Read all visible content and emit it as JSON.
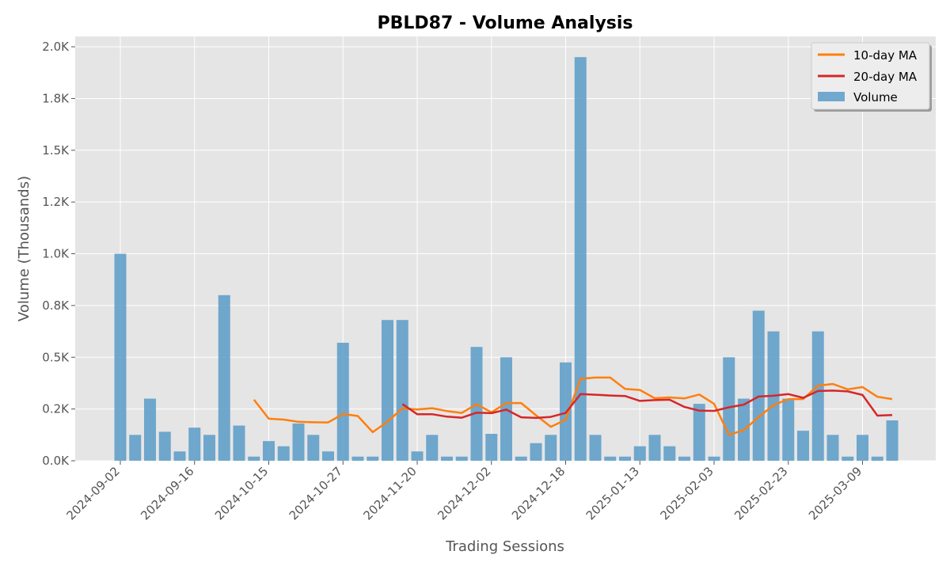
{
  "chart_data": {
    "type": "bar",
    "title": "PBLD87 - Volume Analysis",
    "xlabel": "Trading Sessions",
    "ylabel": "Volume (Thousands)",
    "ylim": [
      0,
      2050
    ],
    "y_ticks": [
      0,
      250,
      500,
      750,
      1000,
      1250,
      1500,
      1750,
      2000
    ],
    "y_tick_labels": [
      "0.0K",
      "0.2K",
      "0.5K",
      "0.8K",
      "1.0K",
      "1.2K",
      "1.5K",
      "1.8K",
      "2.0K"
    ],
    "x_tick_labels": [
      {
        "index": 0,
        "label": "2024-09-02"
      },
      {
        "index": 5,
        "label": "2024-09-16"
      },
      {
        "index": 10,
        "label": "2024-10-15"
      },
      {
        "index": 15,
        "label": "2024-10-27"
      },
      {
        "index": 20,
        "label": "2024-11-20"
      },
      {
        "index": 25,
        "label": "2024-12-02"
      },
      {
        "index": 30,
        "label": "2024-12-18"
      },
      {
        "index": 35,
        "label": "2025-01-13"
      },
      {
        "index": 40,
        "label": "2025-02-03"
      },
      {
        "index": 45,
        "label": "2025-02-23"
      },
      {
        "index": 50,
        "label": "2025-03-09"
      }
    ],
    "grid": true,
    "legend_position": "top-right",
    "series": [
      {
        "name": "Volume",
        "type": "bar",
        "color": "#5b9bc8",
        "values": [
          1000,
          125,
          300,
          140,
          45,
          160,
          125,
          800,
          170,
          20,
          95,
          70,
          180,
          125,
          45,
          570,
          20,
          20,
          680,
          680,
          45,
          125,
          20,
          20,
          550,
          130,
          500,
          20,
          85,
          125,
          475,
          1950,
          125,
          20,
          20,
          70,
          125,
          70,
          20,
          275,
          20,
          500,
          300,
          725,
          625,
          300,
          145,
          625,
          125,
          20,
          125,
          20,
          195
        ]
      },
      {
        "name": "10-day MA",
        "type": "line",
        "color": "#ff7f0e",
        "values": [
          null,
          null,
          null,
          null,
          null,
          null,
          null,
          null,
          null,
          295,
          203,
          199,
          188,
          186,
          185,
          226,
          216,
          138,
          189,
          253,
          248,
          254,
          240,
          231,
          273,
          234,
          279,
          279,
          220,
          164,
          198,
          396,
          402,
          402,
          347,
          342,
          302,
          306,
          301,
          320,
          275,
          125,
          148,
          211,
          269,
          298,
          298,
          363,
          371,
          345,
          356,
          309,
          298
        ]
      },
      {
        "name": "20-day MA",
        "type": "line",
        "color": "#d62728",
        "values": [
          null,
          null,
          null,
          null,
          null,
          null,
          null,
          null,
          null,
          null,
          null,
          null,
          null,
          null,
          null,
          null,
          null,
          null,
          null,
          274,
          225,
          225,
          213,
          208,
          232,
          230,
          247,
          210,
          207,
          212,
          231,
          322,
          319,
          315,
          313,
          289,
          293,
          295,
          260,
          242,
          241,
          258,
          271,
          310,
          314,
          322,
          304,
          337,
          339,
          335,
          318,
          218,
          221
        ]
      }
    ]
  }
}
